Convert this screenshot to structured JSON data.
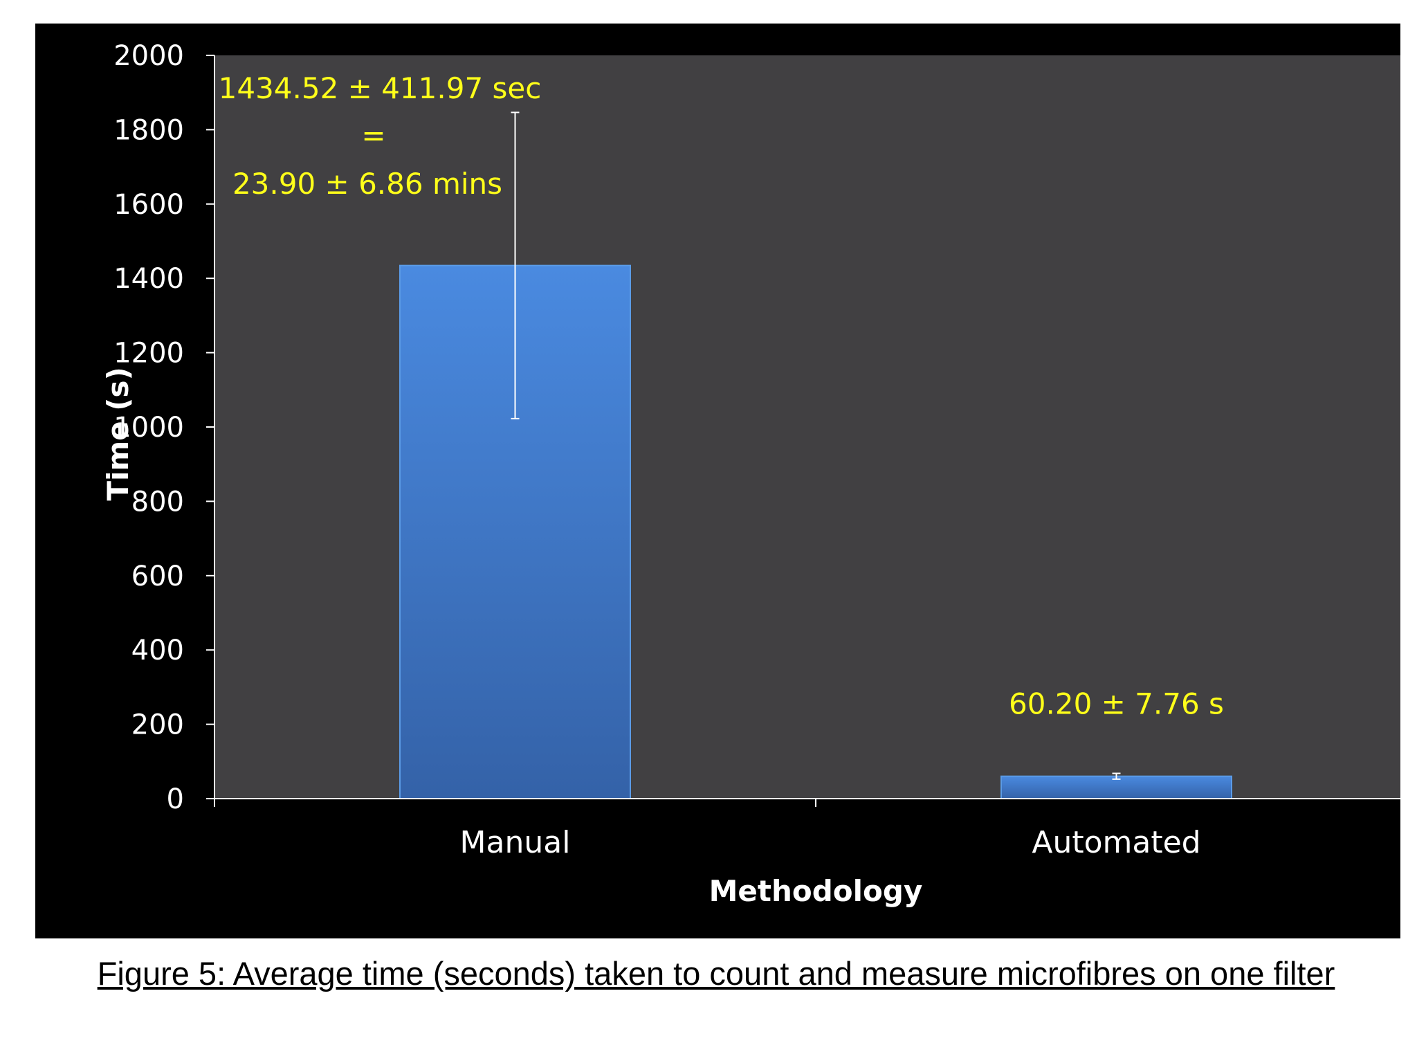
{
  "chart_data": {
    "type": "bar",
    "categories": [
      "Manual",
      "Automated"
    ],
    "values": [
      1434.52,
      60.2
    ],
    "error": [
      411.97,
      7.76
    ],
    "xlabel": "Methodology",
    "ylabel": "Time (s)",
    "ylim": [
      0,
      2000
    ],
    "yticks": [
      "0",
      "200",
      "400",
      "600",
      "800",
      "1000",
      "1200",
      "1400",
      "1600",
      "1800",
      "2000"
    ],
    "grid": false,
    "legend": "none",
    "annotations": {
      "manual_line1": "1434.52 ± 411.97 sec",
      "manual_line2": "=",
      "manual_line3": "23.90 ± 6.86 mins",
      "automated": "60.20 ± 7.76 s"
    },
    "colors": {
      "panel_background": "#000000",
      "plot_background": "#414042",
      "bar": "#3d78c9",
      "annotation": "#ffff1a",
      "axis": "#ffffff"
    }
  },
  "caption": "Figure 5: Average time  (seconds) taken to count and measure microfibres on one filter"
}
